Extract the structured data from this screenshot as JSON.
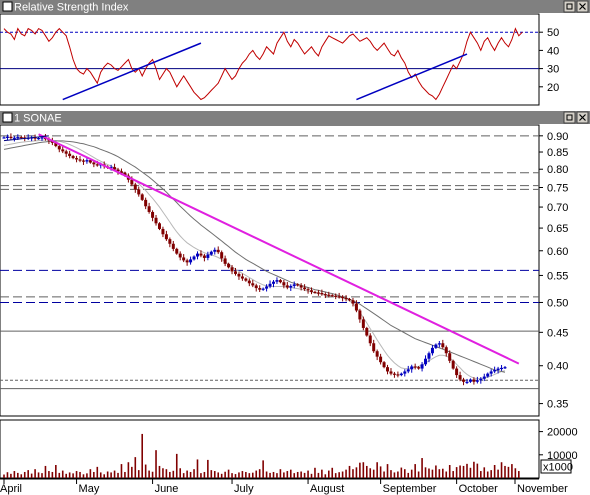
{
  "panels": {
    "rsi_title": "Relative Strength Index",
    "price_title": "1 SONAE",
    "volume_multiplier": "x1000"
  },
  "colors": {
    "title_bar": "#808080",
    "bar_up": "#0000c0",
    "bar_down": "#800000",
    "rsi_line": "#c00000",
    "trend_rsi": "#0000c0",
    "trend_price": "#e020e0",
    "ma_short": "#b8b8b8",
    "ma_long": "#707070",
    "volume": "#800000"
  },
  "chart_data": [
    {
      "type": "line",
      "series": [
        {
          "name": "Relative Strength Index",
          "values": [
            52,
            50,
            49,
            46,
            52,
            49,
            48,
            52,
            51,
            49,
            52,
            51,
            48,
            45,
            47,
            50,
            52,
            50,
            48,
            42,
            35,
            30,
            28,
            27,
            30,
            28,
            25,
            22,
            28,
            31,
            33,
            32,
            30,
            29,
            31,
            33,
            35,
            30,
            28,
            30,
            26,
            30,
            33,
            35,
            30,
            24,
            27,
            30,
            28,
            24,
            20,
            23,
            26,
            23,
            20,
            17,
            15,
            13,
            14,
            16,
            18,
            20,
            22,
            26,
            30,
            27,
            24,
            26,
            30,
            33,
            35,
            38,
            40,
            37,
            35,
            38,
            42,
            40,
            38,
            44,
            47,
            50,
            45,
            42,
            46,
            44,
            41,
            38,
            40,
            42,
            39,
            37,
            42,
            45,
            48,
            47,
            46,
            45,
            44,
            46,
            48,
            49,
            47,
            45,
            46,
            47,
            45,
            42,
            40,
            42,
            44,
            41,
            38,
            37,
            40,
            36,
            33,
            28,
            25,
            27,
            23,
            20,
            18,
            16,
            15,
            13,
            16,
            20,
            24,
            28,
            32,
            30,
            34,
            38,
            45,
            50,
            47,
            44,
            40,
            45,
            47,
            43,
            40,
            44,
            47,
            44,
            42,
            46,
            52,
            48,
            50
          ]
        }
      ],
      "trendlines": [
        {
          "from": [
            17,
            13
          ],
          "to": [
            57,
            44
          ]
        },
        {
          "from": [
            102,
            13
          ],
          "to": [
            134,
            38
          ]
        }
      ],
      "reference_lines": [
        30,
        50
      ],
      "y_ticks": [
        20,
        30,
        40,
        50
      ],
      "ylim": [
        10,
        60
      ]
    },
    {
      "type": "line",
      "x_ticks": [
        "April",
        "May",
        "June",
        "July",
        "August",
        "September",
        "October",
        "November"
      ],
      "close": [
        0.895,
        0.897,
        0.893,
        0.894,
        0.896,
        0.895,
        0.892,
        0.894,
        0.895,
        0.891,
        0.893,
        0.895,
        0.89,
        0.885,
        0.878,
        0.868,
        0.858,
        0.852,
        0.845,
        0.838,
        0.832,
        0.828,
        0.825,
        0.822,
        0.826,
        0.819,
        0.814,
        0.812,
        0.814,
        0.808,
        0.804,
        0.806,
        0.799,
        0.794,
        0.79,
        0.782,
        0.771,
        0.758,
        0.745,
        0.732,
        0.718,
        0.702,
        0.688,
        0.674,
        0.661,
        0.648,
        0.636,
        0.625,
        0.615,
        0.604,
        0.594,
        0.586,
        0.58,
        0.576,
        0.582,
        0.588,
        0.594,
        0.59,
        0.585,
        0.592,
        0.598,
        0.602,
        0.597,
        0.584,
        0.573,
        0.566,
        0.558,
        0.553,
        0.548,
        0.544,
        0.54,
        0.535,
        0.531,
        0.526,
        0.523,
        0.525,
        0.529,
        0.534,
        0.538,
        0.541,
        0.537,
        0.531,
        0.527,
        0.53,
        0.533,
        0.531,
        0.527,
        0.524,
        0.522,
        0.519,
        0.518,
        0.517,
        0.515,
        0.514,
        0.513,
        0.512,
        0.511,
        0.51,
        0.508,
        0.506,
        0.504,
        0.498,
        0.486,
        0.471,
        0.457,
        0.445,
        0.433,
        0.421,
        0.413,
        0.405,
        0.398,
        0.392,
        0.389,
        0.388,
        0.387,
        0.389,
        0.392,
        0.395,
        0.399,
        0.398,
        0.396,
        0.402,
        0.41,
        0.418,
        0.426,
        0.431,
        0.433,
        0.427,
        0.418,
        0.407,
        0.396,
        0.387,
        0.381,
        0.378,
        0.378,
        0.381,
        0.378,
        0.38,
        0.382,
        0.385,
        0.389,
        0.392,
        0.394,
        0.396,
        0.397,
        0.398
      ],
      "moving_averages": [
        {
          "values": [
            0.87,
            0.872,
            0.874,
            0.876,
            0.878,
            0.88,
            0.881,
            0.882,
            0.883,
            0.884,
            0.885,
            0.886,
            0.887,
            0.887,
            0.886,
            0.885,
            0.883,
            0.88,
            0.877,
            0.873,
            0.868,
            0.863,
            0.858,
            0.852,
            0.846,
            0.84,
            0.834,
            0.828,
            0.823,
            0.818,
            0.813,
            0.809,
            0.804,
            0.799,
            0.794,
            0.788,
            0.782,
            0.775,
            0.768,
            0.76,
            0.751,
            0.742,
            0.732,
            0.722,
            0.711,
            0.7,
            0.688,
            0.676,
            0.664,
            0.652,
            0.641,
            0.632,
            0.624,
            0.617,
            0.612,
            0.607,
            0.603,
            0.599,
            0.596,
            0.593,
            0.591,
            0.589,
            0.586,
            0.582,
            0.577,
            0.572,
            0.567,
            0.562,
            0.558,
            0.554,
            0.55,
            0.546,
            0.542,
            0.538,
            0.535,
            0.532,
            0.53,
            0.529,
            0.529,
            0.529,
            0.529,
            0.529,
            0.528,
            0.527,
            0.526,
            0.525,
            0.524,
            0.522,
            0.52,
            0.519,
            0.517,
            0.516,
            0.515,
            0.513,
            0.512,
            0.511,
            0.51,
            0.509,
            0.508,
            0.506,
            0.503,
            0.498,
            0.491,
            0.483,
            0.474,
            0.465,
            0.456,
            0.447,
            0.438,
            0.43,
            0.422,
            0.415,
            0.409,
            0.404,
            0.4,
            0.397,
            0.396,
            0.396,
            0.397,
            0.398,
            0.399,
            0.401,
            0.404,
            0.407,
            0.41,
            0.413,
            0.415,
            0.415,
            0.414,
            0.411,
            0.407,
            0.402,
            0.397,
            0.392,
            0.388,
            0.385,
            0.383,
            0.382,
            0.382,
            0.383,
            0.384,
            0.386,
            0.388,
            0.39,
            0.392,
            0.393
          ]
        },
        {
          "values": [
            0.858,
            0.86,
            0.862,
            0.864,
            0.866,
            0.868,
            0.87,
            0.872,
            0.874,
            0.876,
            0.878,
            0.88,
            0.881,
            0.882,
            0.883,
            0.884,
            0.884,
            0.884,
            0.883,
            0.882,
            0.881,
            0.879,
            0.877,
            0.875,
            0.872,
            0.869,
            0.866,
            0.862,
            0.858,
            0.854,
            0.85,
            0.846,
            0.841,
            0.836,
            0.83,
            0.824,
            0.818,
            0.812,
            0.806,
            0.799,
            0.792,
            0.785,
            0.778,
            0.77,
            0.762,
            0.754,
            0.746,
            0.738,
            0.729,
            0.72,
            0.711,
            0.702,
            0.694,
            0.686,
            0.678,
            0.671,
            0.664,
            0.657,
            0.651,
            0.645,
            0.639,
            0.633,
            0.627,
            0.621,
            0.615,
            0.609,
            0.603,
            0.597,
            0.592,
            0.587,
            0.582,
            0.578,
            0.574,
            0.57,
            0.566,
            0.562,
            0.558,
            0.555,
            0.552,
            0.549,
            0.546,
            0.543,
            0.54,
            0.537,
            0.535,
            0.533,
            0.531,
            0.529,
            0.527,
            0.525,
            0.523,
            0.522,
            0.52,
            0.519,
            0.517,
            0.516,
            0.514,
            0.512,
            0.51,
            0.508,
            0.506,
            0.503,
            0.5,
            0.497,
            0.493,
            0.489,
            0.485,
            0.481,
            0.477,
            0.473,
            0.469,
            0.465,
            0.461,
            0.458,
            0.455,
            0.452,
            0.449,
            0.446,
            0.443,
            0.44,
            0.438,
            0.436,
            0.434,
            0.432,
            0.43,
            0.428,
            0.426,
            0.424,
            0.422,
            0.42,
            0.418,
            0.416,
            0.414,
            0.412,
            0.41,
            0.408,
            0.406,
            0.404,
            0.402,
            0.4,
            0.398,
            0.396,
            0.394,
            0.393,
            0.392,
            0.391
          ]
        }
      ],
      "trendlines": [
        {
          "from": [
            10,
            0.905
          ],
          "to": [
            149,
            0.403
          ]
        },
        {
          "from": [
            0,
            0.885
          ],
          "to": [
            13,
            0.9
          ]
        }
      ],
      "horizontal_lines": [
        {
          "y": 0.9,
          "style": "dashed"
        },
        {
          "y": 0.79,
          "style": "dashed"
        },
        {
          "y": 0.755,
          "style": "dashed"
        },
        {
          "y": 0.745,
          "style": "dashed"
        },
        {
          "y": 0.56,
          "style": "dashed"
        },
        {
          "y": 0.5,
          "style": "dashed"
        },
        {
          "y": 0.51,
          "style": "dashed"
        },
        {
          "y": 0.452,
          "style": "solid"
        },
        {
          "y": 0.38,
          "style": "dashed"
        },
        {
          "y": 0.369,
          "style": "solid"
        }
      ],
      "y_ticks": [
        0.35,
        0.4,
        0.45,
        0.5,
        0.55,
        0.6,
        0.65,
        0.7,
        0.75,
        0.8,
        0.85,
        0.9
      ],
      "ylim": [
        0.335,
        0.935
      ],
      "y_scale": "log"
    },
    {
      "type": "bar",
      "values": [
        1500,
        2500,
        1800,
        3000,
        2200,
        1600,
        2600,
        3400,
        1900,
        3800,
        2400,
        2100,
        5200,
        3000,
        2600,
        5600,
        2200,
        3200,
        1800,
        2400,
        2000,
        3000,
        2600,
        1600,
        2000,
        3800,
        2600,
        4800,
        2400,
        1600,
        2800,
        2400,
        3200,
        2200,
        6000,
        2600,
        6800,
        4800,
        9000,
        3400,
        19000,
        5800,
        3200,
        2700,
        12000,
        5200,
        4200,
        3800,
        2600,
        3100,
        10400,
        4200,
        2100,
        3200,
        2600,
        3800,
        8000,
        2100,
        2600,
        7800,
        3400,
        3000,
        2400,
        1800,
        2700,
        3600,
        2100,
        1700,
        2400,
        3000,
        2600,
        2100,
        2300,
        3200,
        3800,
        7600,
        2800,
        2200,
        2600,
        2100,
        3800,
        2400,
        3000,
        3600,
        2100,
        2600,
        2800,
        2200,
        3200,
        1800,
        4400,
        2200,
        3600,
        1600,
        3200,
        4400,
        2100,
        2500,
        2800,
        3600,
        5200,
        3800,
        4600,
        6600,
        6800,
        5200,
        4200,
        3600,
        6800,
        5000,
        2800,
        6000,
        3400,
        2400,
        2800,
        4500,
        3800,
        2200,
        3600,
        6000,
        2800,
        8600,
        4600,
        4100,
        3600,
        5400,
        3800,
        4000,
        2800,
        5600,
        3000,
        4700,
        5400,
        5200,
        6100,
        4400,
        7000,
        6200,
        3000,
        4600,
        2800,
        3400,
        5600,
        3600,
        6800,
        5200,
        4800,
        6000,
        4200,
        3000
      ],
      "y_ticks": [
        10000,
        20000
      ],
      "ylim": [
        0,
        25000
      ]
    }
  ]
}
